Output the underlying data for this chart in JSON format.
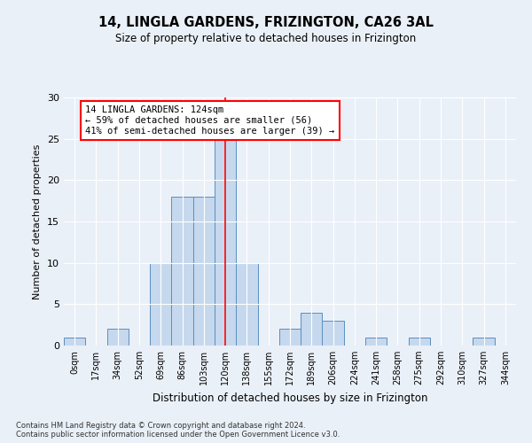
{
  "title": "14, LINGLA GARDENS, FRIZINGTON, CA26 3AL",
  "subtitle": "Size of property relative to detached houses in Frizington",
  "xlabel": "Distribution of detached houses by size in Frizington",
  "ylabel": "Number of detached properties",
  "bar_color": "#c5d8ed",
  "bar_edge_color": "#5a8fc0",
  "categories": [
    "0sqm",
    "17sqm",
    "34sqm",
    "52sqm",
    "69sqm",
    "86sqm",
    "103sqm",
    "120sqm",
    "138sqm",
    "155sqm",
    "172sqm",
    "189sqm",
    "206sqm",
    "224sqm",
    "241sqm",
    "258sqm",
    "275sqm",
    "292sqm",
    "310sqm",
    "327sqm",
    "344sqm"
  ],
  "values": [
    1,
    0,
    2,
    0,
    10,
    18,
    18,
    25,
    10,
    0,
    2,
    4,
    3,
    0,
    1,
    0,
    1,
    0,
    0,
    1,
    0
  ],
  "ylim": [
    0,
    30
  ],
  "yticks": [
    0,
    5,
    10,
    15,
    20,
    25,
    30
  ],
  "property_bin_index": 7,
  "annotation_title": "14 LINGLA GARDENS: 124sqm",
  "annotation_line1": "← 59% of detached houses are smaller (56)",
  "annotation_line2": "41% of semi-detached houses are larger (39) →",
  "redline_x": 7,
  "footer1": "Contains HM Land Registry data © Crown copyright and database right 2024.",
  "footer2": "Contains public sector information licensed under the Open Government Licence v3.0.",
  "bg_color": "#eaf0f8",
  "plot_bg_color": "#eaf0f8"
}
